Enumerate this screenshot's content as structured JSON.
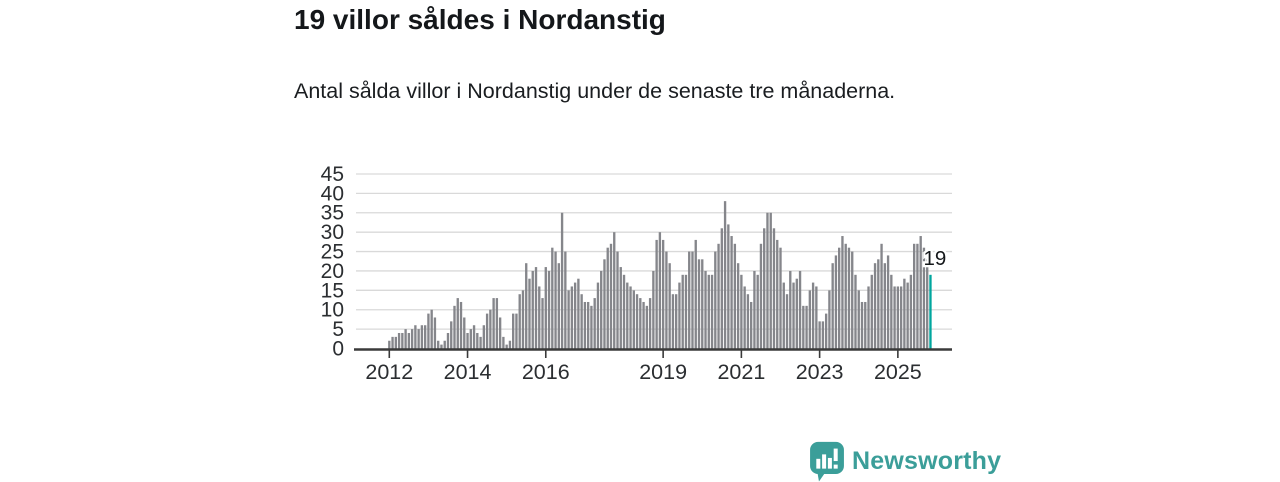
{
  "header": {
    "title": "19 villor såldes i Nordanstig",
    "subtitle": "Antal sålda villor i Nordanstig under de senaste tre månaderna."
  },
  "chart_data": {
    "type": "bar",
    "title": "19 villor såldes i Nordanstig",
    "subtitle": "Antal sålda villor i Nordanstig under de senaste tre månaderna.",
    "x_start": "2012-01",
    "x_step": "1 month",
    "values": [
      2,
      3,
      3,
      4,
      4,
      5,
      4,
      5,
      6,
      5,
      6,
      6,
      9,
      10,
      8,
      2,
      1,
      2,
      4,
      7,
      11,
      13,
      12,
      8,
      4,
      5,
      6,
      4,
      3,
      6,
      9,
      10,
      13,
      13,
      8,
      3,
      1,
      2,
      9,
      9,
      14,
      15,
      22,
      18,
      20,
      21,
      16,
      13,
      21,
      20,
      26,
      25,
      22,
      35,
      25,
      15,
      16,
      17,
      18,
      14,
      12,
      12,
      11,
      13,
      17,
      20,
      23,
      26,
      27,
      30,
      25,
      21,
      19,
      17,
      16,
      15,
      14,
      13,
      12,
      11,
      13,
      20,
      28,
      30,
      28,
      25,
      22,
      14,
      14,
      17,
      19,
      19,
      25,
      25,
      28,
      23,
      23,
      20,
      19,
      19,
      25,
      27,
      31,
      38,
      32,
      29,
      27,
      22,
      19,
      16,
      14,
      12,
      20,
      19,
      27,
      31,
      35,
      35,
      31,
      28,
      26,
      17,
      14,
      20,
      17,
      18,
      20,
      11,
      11,
      15,
      17,
      16,
      7,
      7,
      9,
      15,
      22,
      24,
      26,
      29,
      27,
      26,
      25,
      19,
      15,
      12,
      12,
      16,
      19,
      22,
      23,
      27,
      22,
      24,
      19,
      16,
      16,
      16,
      18,
      17,
      19,
      27,
      27,
      29,
      26,
      23,
      19
    ],
    "highlight": {
      "index": 166,
      "value": 19,
      "label": "19",
      "color": "#00a69e"
    },
    "bar_color": "#85868b",
    "grid_color": "#d9d9d9",
    "axis_color": "#3a3a3a",
    "text_color": "#2b2e31",
    "annotation_color": "#14171a",
    "ylim": [
      0,
      45
    ],
    "yticks": [
      0,
      5,
      10,
      15,
      20,
      25,
      30,
      35,
      40,
      45
    ],
    "xticks": [
      {
        "label": "2012",
        "index": 0
      },
      {
        "label": "2014",
        "index": 24
      },
      {
        "label": "2016",
        "index": 48
      },
      {
        "label": "2019",
        "index": 84
      },
      {
        "label": "2021",
        "index": 108
      },
      {
        "label": "2023",
        "index": 132
      },
      {
        "label": "2025",
        "index": 156
      }
    ],
    "grid": true,
    "legend": "none"
  },
  "footer": {
    "brand": "Newsworthy",
    "brand_color": "#3b9e99",
    "logo_icon": "newsworthy-speech-bubble-bar-chart-icon"
  }
}
